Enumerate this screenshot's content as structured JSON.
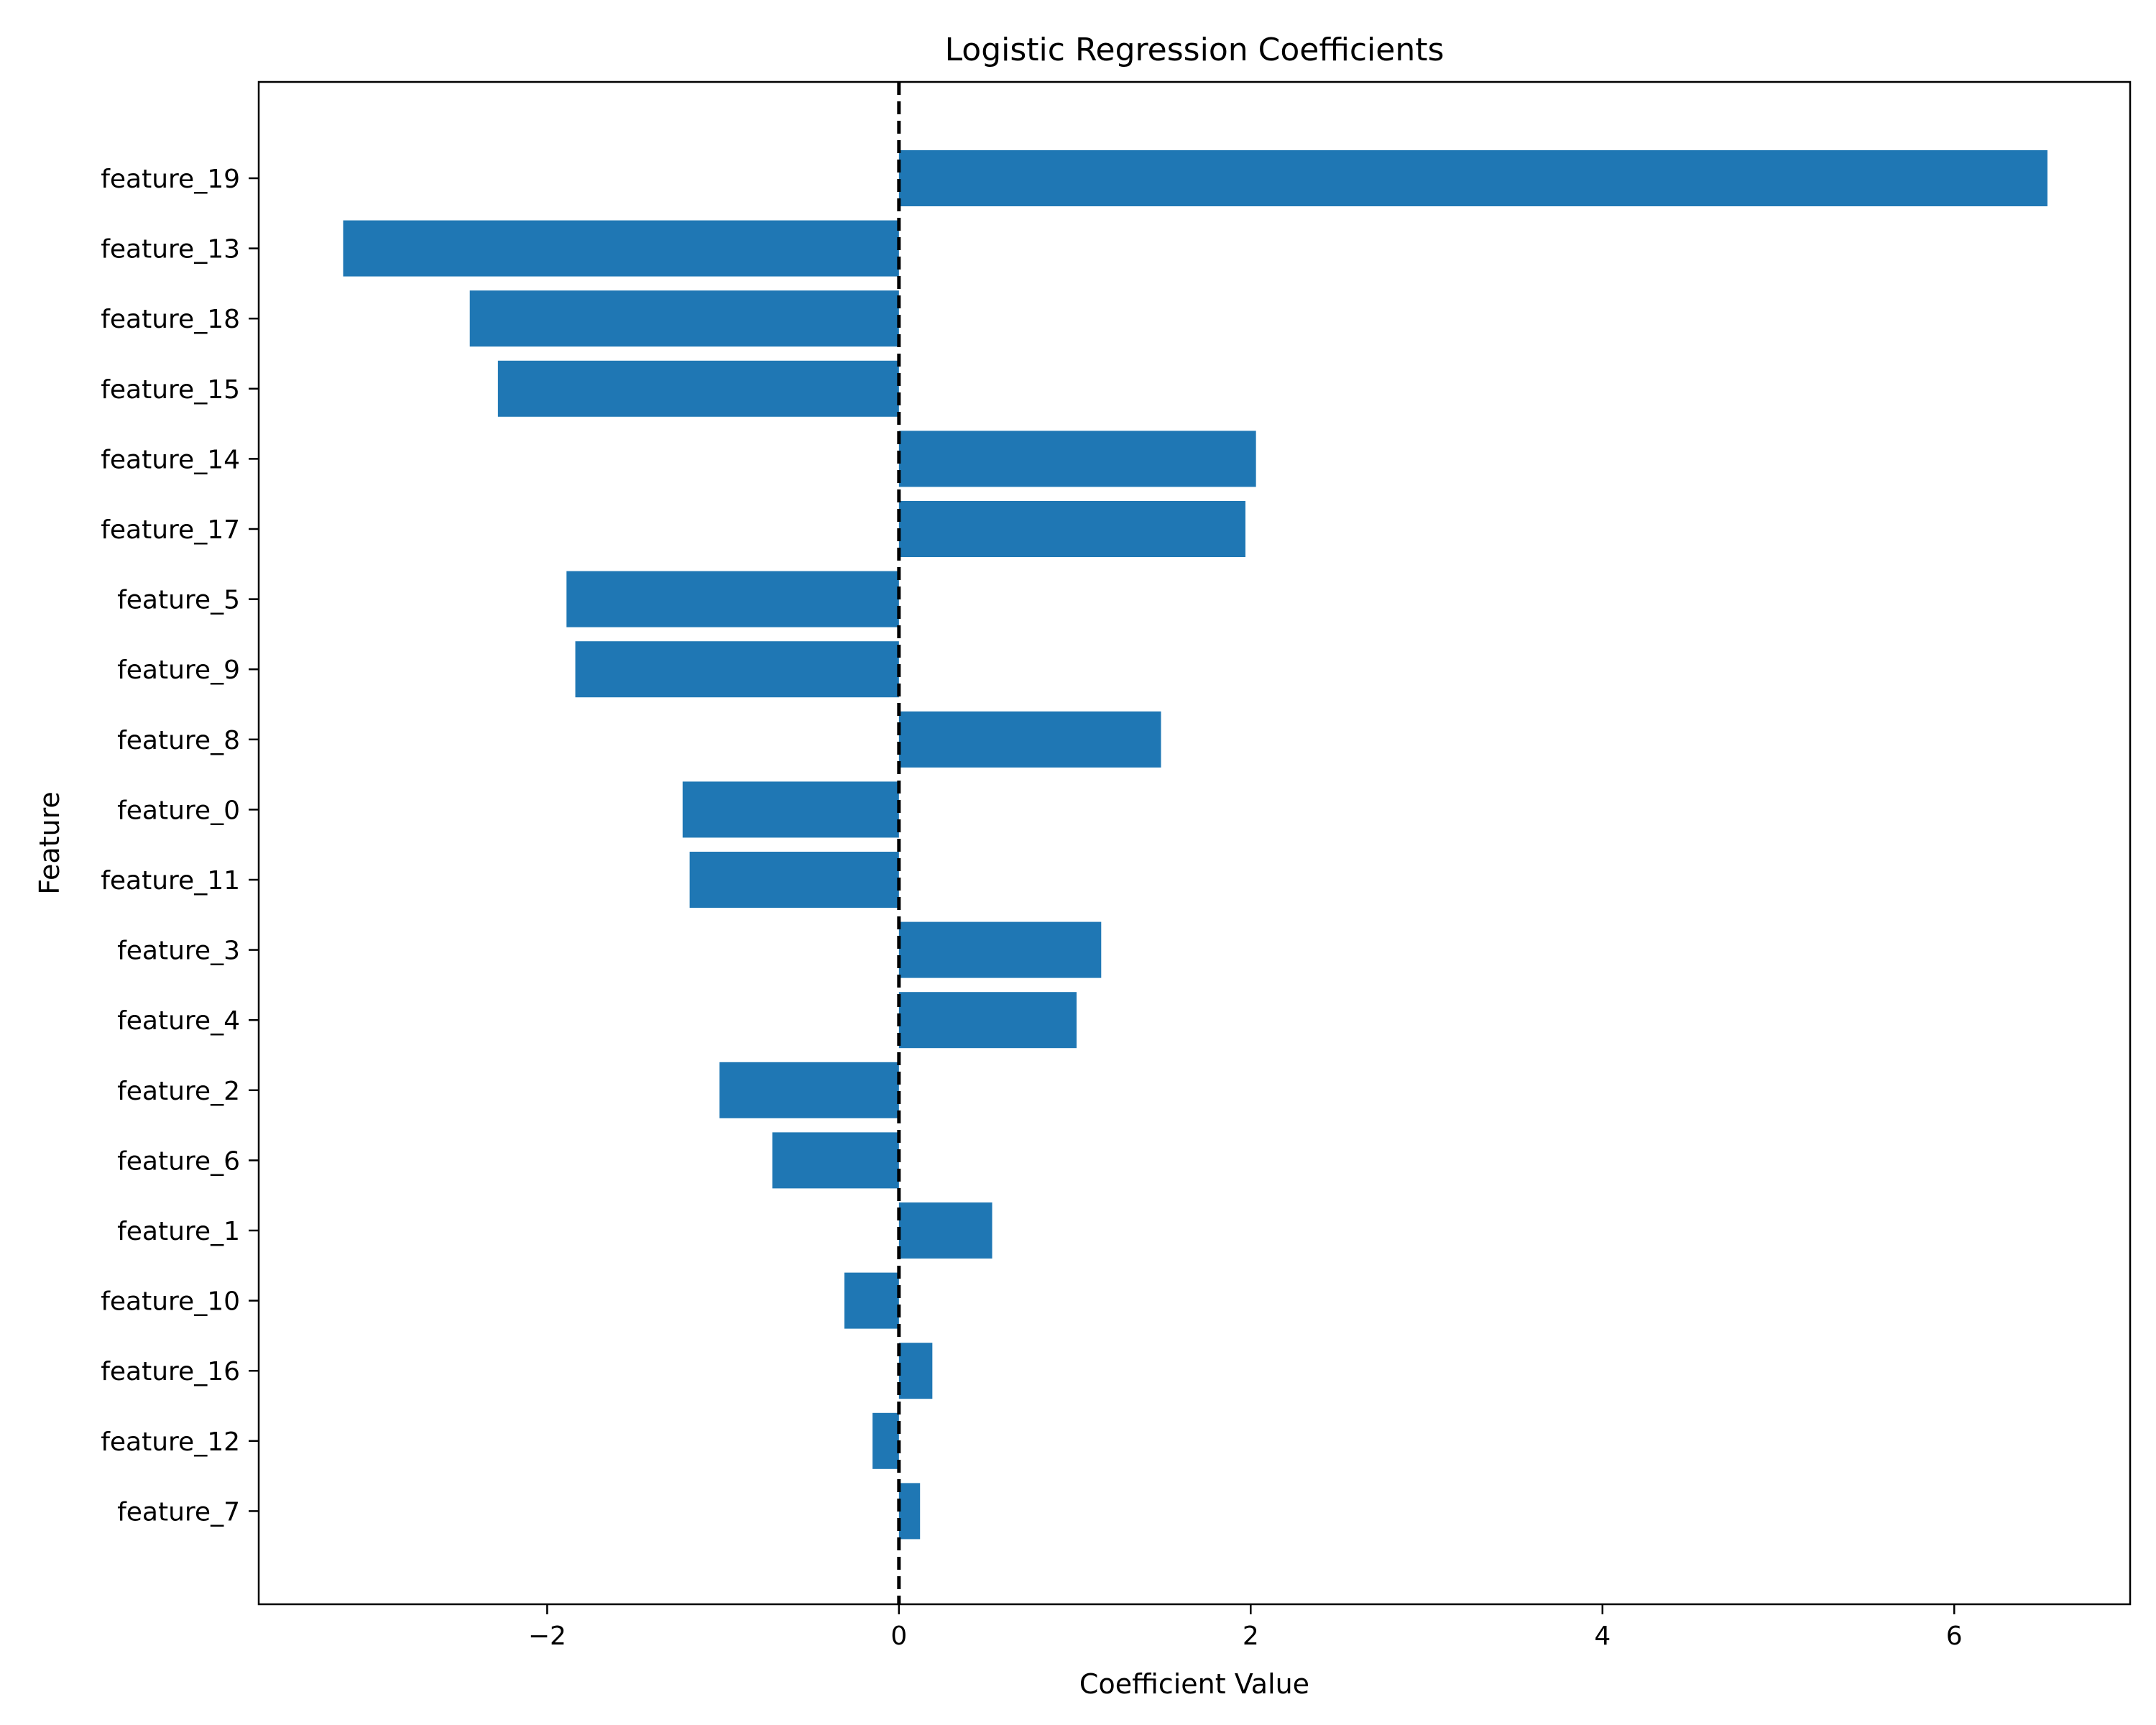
{
  "chart_data": {
    "type": "bar",
    "orientation": "horizontal",
    "title": "Logistic Regression Coefficients",
    "xlabel": "Coefficient Value",
    "ylabel": "Feature",
    "categories": [
      "feature_19",
      "feature_13",
      "feature_18",
      "feature_15",
      "feature_14",
      "feature_17",
      "feature_5",
      "feature_9",
      "feature_8",
      "feature_0",
      "feature_11",
      "feature_3",
      "feature_4",
      "feature_2",
      "feature_6",
      "feature_1",
      "feature_10",
      "feature_16",
      "feature_12",
      "feature_7"
    ],
    "values": [
      6.53,
      -3.16,
      -2.44,
      -2.28,
      2.03,
      1.97,
      -1.89,
      -1.84,
      1.49,
      -1.23,
      -1.19,
      1.15,
      1.01,
      -1.02,
      -0.72,
      0.53,
      -0.31,
      0.19,
      -0.15,
      0.12
    ],
    "xlim": [
      -3.64,
      7.0
    ],
    "xticks": [
      -2,
      0,
      2,
      4,
      6
    ],
    "xtick_labels": [
      "−2",
      "0",
      "2",
      "4",
      "6"
    ],
    "reference_line": {
      "x": 0,
      "style": "dashed",
      "color": "#000000"
    },
    "bar_color": "#1f77b4",
    "grid": false,
    "legend": "none"
  }
}
